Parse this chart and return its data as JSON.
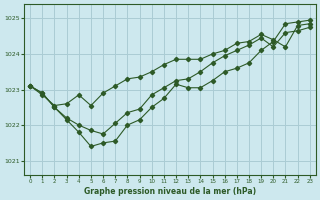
{
  "title": "Graphe pression niveau de la mer (hPa)",
  "bg_color": "#cde8ee",
  "grid_color": "#aaccd4",
  "line_color": "#2d5a27",
  "xlim": [
    -0.5,
    23.5
  ],
  "ylim": [
    1020.6,
    1025.4
  ],
  "yticks": [
    1021,
    1022,
    1023,
    1024,
    1025
  ],
  "xticks": [
    0,
    1,
    2,
    3,
    4,
    5,
    6,
    7,
    8,
    9,
    10,
    11,
    12,
    13,
    14,
    15,
    16,
    17,
    18,
    19,
    20,
    21,
    22,
    23
  ],
  "series1_x": [
    0,
    1,
    2,
    3,
    4,
    5,
    6,
    7,
    8,
    9,
    10,
    11,
    12,
    13,
    14,
    15,
    16,
    17,
    18,
    19,
    20,
    21,
    22,
    23
  ],
  "series1_y": [
    1023.1,
    1022.85,
    1022.55,
    1022.6,
    1022.85,
    1022.55,
    1022.9,
    1023.1,
    1023.3,
    1023.35,
    1023.5,
    1023.7,
    1023.85,
    1023.85,
    1023.85,
    1024.0,
    1024.1,
    1024.3,
    1024.35,
    1024.55,
    1024.4,
    1024.2,
    1024.8,
    1024.85
  ],
  "series2_x": [
    0,
    1,
    2,
    3,
    4,
    5,
    6,
    7,
    8,
    9,
    10,
    11,
    12,
    13,
    14,
    15,
    16,
    17,
    18,
    19,
    20,
    21,
    22,
    23
  ],
  "series2_y": [
    1023.1,
    1022.9,
    1022.5,
    1022.15,
    1021.8,
    1021.4,
    1021.5,
    1021.55,
    1022.0,
    1022.15,
    1022.5,
    1022.75,
    1023.15,
    1023.05,
    1023.05,
    1023.25,
    1023.5,
    1023.6,
    1023.75,
    1024.1,
    1024.35,
    1024.85,
    1024.9,
    1024.95
  ],
  "series3_x": [
    0,
    1,
    2,
    3,
    4,
    5,
    6,
    7,
    8,
    9,
    10,
    11,
    12,
    13,
    14,
    15,
    16,
    17,
    18,
    19,
    20,
    21,
    22,
    23
  ],
  "series3_y": [
    1023.1,
    1022.9,
    1022.5,
    1022.2,
    1022.0,
    1021.85,
    1021.75,
    1022.05,
    1022.35,
    1022.45,
    1022.85,
    1023.05,
    1023.25,
    1023.3,
    1023.5,
    1023.75,
    1023.95,
    1024.1,
    1024.25,
    1024.45,
    1024.2,
    1024.6,
    1024.65,
    1024.75
  ]
}
